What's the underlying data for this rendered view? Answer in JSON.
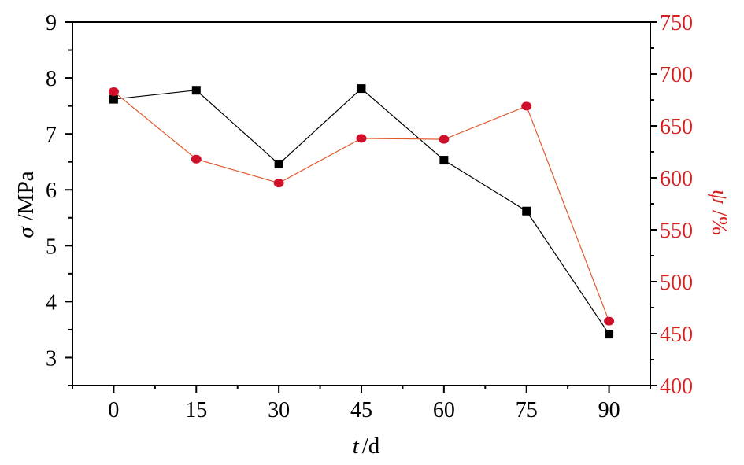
{
  "colors": {
    "left_series": "#000000",
    "right_series_marker": "#d0102a",
    "right_series_line": "#e05a30",
    "right_axis": "#d42020",
    "left_axis": "#000000"
  },
  "chart_data": {
    "type": "line",
    "x": [
      0,
      15,
      30,
      45,
      60,
      75,
      90
    ],
    "xlabel_symbol": "t",
    "xlabel_unit": "/d",
    "xlim": [
      -7.5,
      97.5
    ],
    "xticks": [
      "0",
      "15",
      "30",
      "45",
      "60",
      "75",
      "90"
    ],
    "ylabel_symbol": "σ",
    "ylabel_unit": "/MPa",
    "ylim": [
      2.5,
      9
    ],
    "yticks": [
      "3",
      "4",
      "5",
      "6",
      "7",
      "8",
      "9"
    ],
    "y2label_symbol": "ψ",
    "y2label_unit": "/%",
    "y2lim": [
      400,
      750
    ],
    "y2ticks": [
      "400",
      "450",
      "500",
      "550",
      "600",
      "650",
      "700",
      "750"
    ],
    "grid": false,
    "legend": "none",
    "series": [
      {
        "axis": "left",
        "marker": "square",
        "values": [
          7.62,
          7.78,
          6.46,
          7.81,
          6.53,
          5.62,
          3.42
        ]
      },
      {
        "axis": "right",
        "marker": "circle",
        "values": [
          683,
          618,
          595,
          638,
          637,
          669,
          462
        ]
      }
    ]
  }
}
